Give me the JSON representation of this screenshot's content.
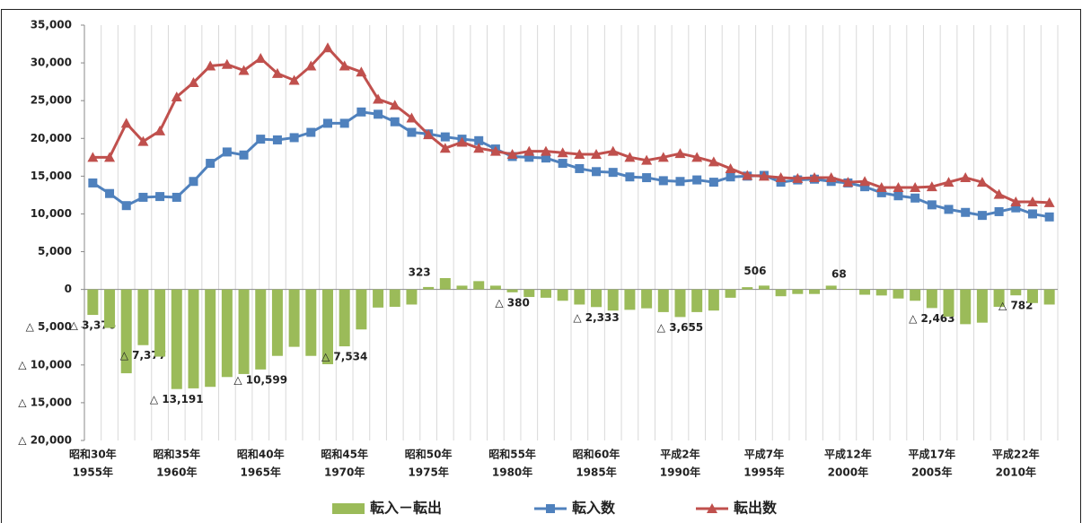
{
  "chart_data": {
    "type": "combo",
    "categories": [
      [
        "昭和30年",
        "1955年"
      ],
      null,
      null,
      null,
      null,
      [
        "昭和35年",
        "1960年"
      ],
      null,
      null,
      null,
      null,
      [
        "昭和40年",
        "1965年"
      ],
      null,
      null,
      null,
      null,
      [
        "昭和45年",
        "1970年"
      ],
      null,
      null,
      null,
      null,
      [
        "昭和50年",
        "1975年"
      ],
      null,
      null,
      null,
      null,
      [
        "昭和55年",
        "1980年"
      ],
      null,
      null,
      null,
      null,
      [
        "昭和60年",
        "1985年"
      ],
      null,
      null,
      null,
      null,
      [
        "平成2年",
        "1990年"
      ],
      null,
      null,
      null,
      null,
      [
        "平成7年",
        "1995年"
      ],
      null,
      null,
      null,
      null,
      [
        "平成12年",
        "2000年"
      ],
      null,
      null,
      null,
      null,
      [
        "平成17年",
        "2005年"
      ],
      null,
      null,
      null,
      null,
      [
        "平成22年",
        "2010年"
      ],
      null,
      null
    ],
    "series": [
      {
        "name": "転入－転出",
        "type": "bar",
        "color": "#9bbb59",
        "values": [
          -3376,
          -5100,
          -11100,
          -7377,
          -8900,
          -13191,
          -13100,
          -12900,
          -11600,
          -11200,
          -10599,
          -8800,
          -7600,
          -8800,
          -9900,
          -7534,
          -5300,
          -2400,
          -2300,
          -2000,
          323,
          1500,
          500,
          1100,
          500,
          -380,
          -1000,
          -1100,
          -1500,
          -2000,
          -2333,
          -2800,
          -2700,
          -2500,
          -3000,
          -3655,
          -3000,
          -2800,
          -1100,
          300,
          506,
          -900,
          -600,
          -600,
          500,
          68,
          -700,
          -800,
          -1200,
          -1500,
          -2463,
          -3600,
          -4600,
          -4400,
          -2300,
          -782,
          -1800,
          -2000
        ],
        "value_labels": [
          "△ 3,376",
          null,
          null,
          "△ 7,377",
          null,
          "△ 13,191",
          null,
          null,
          null,
          null,
          "△ 10,599",
          null,
          null,
          null,
          null,
          "△ 7,534",
          null,
          null,
          null,
          null,
          "323",
          null,
          null,
          null,
          null,
          "△ 380",
          null,
          null,
          null,
          null,
          "△ 2,333",
          null,
          null,
          null,
          null,
          "△ 3,655",
          null,
          null,
          null,
          null,
          "506",
          null,
          null,
          null,
          null,
          "68",
          null,
          null,
          null,
          null,
          "△ 2,463",
          null,
          null,
          null,
          null,
          "△ 782",
          null,
          null
        ]
      },
      {
        "name": "転入数",
        "type": "line",
        "marker": "square",
        "color": "#4f81bd",
        "values": [
          14100,
          12700,
          11100,
          12200,
          12300,
          12200,
          14300,
          16700,
          18200,
          17800,
          19900,
          19800,
          20100,
          20800,
          22000,
          22000,
          23500,
          23200,
          22200,
          20800,
          20600,
          20200,
          19900,
          19700,
          18600,
          17600,
          17500,
          17400,
          16700,
          16000,
          15600,
          15500,
          14900,
          14800,
          14400,
          14300,
          14500,
          14200,
          14900,
          15000,
          15100,
          14200,
          14500,
          14600,
          14300,
          14100,
          13600,
          12800,
          12400,
          12100,
          11200,
          10600,
          10200,
          9800,
          10300,
          10800,
          10000,
          9600
        ]
      },
      {
        "name": "転出数",
        "type": "line",
        "marker": "triangle",
        "color": "#c0504d",
        "values": [
          17500,
          17500,
          22000,
          19600,
          21000,
          25500,
          27400,
          29600,
          29800,
          29000,
          30600,
          28600,
          27700,
          29600,
          32000,
          29600,
          28800,
          25200,
          24400,
          22700,
          20500,
          18700,
          19500,
          18700,
          18300,
          17900,
          18300,
          18300,
          18100,
          17900,
          17900,
          18300,
          17500,
          17100,
          17500,
          18000,
          17500,
          16900,
          16000,
          15100,
          15000,
          14800,
          14700,
          14800,
          14800,
          14200,
          14300,
          13500,
          13500,
          13500,
          13600,
          14200,
          14800,
          14200,
          12600,
          11600,
          11600,
          11500
        ]
      }
    ],
    "ylim": [
      -20000,
      35000
    ],
    "yticks": [
      {
        "value": -20000,
        "label": "△ 20,000"
      },
      {
        "value": -15000,
        "label": "△ 15,000"
      },
      {
        "value": -10000,
        "label": "△ 10,000"
      },
      {
        "value": -5000,
        "label": "△ 5,000"
      },
      0,
      {
        "value": 5000,
        "label": "5,000"
      },
      {
        "value": 10000,
        "label": "10,000"
      },
      {
        "value": 15000,
        "label": "15,000"
      },
      {
        "value": 20000,
        "label": "20,000"
      },
      {
        "value": 25000,
        "label": "25,000"
      },
      {
        "value": 30000,
        "label": "30,000"
      },
      {
        "value": 35000,
        "label": "35,000"
      }
    ],
    "grid": true,
    "legend": "bottom"
  }
}
